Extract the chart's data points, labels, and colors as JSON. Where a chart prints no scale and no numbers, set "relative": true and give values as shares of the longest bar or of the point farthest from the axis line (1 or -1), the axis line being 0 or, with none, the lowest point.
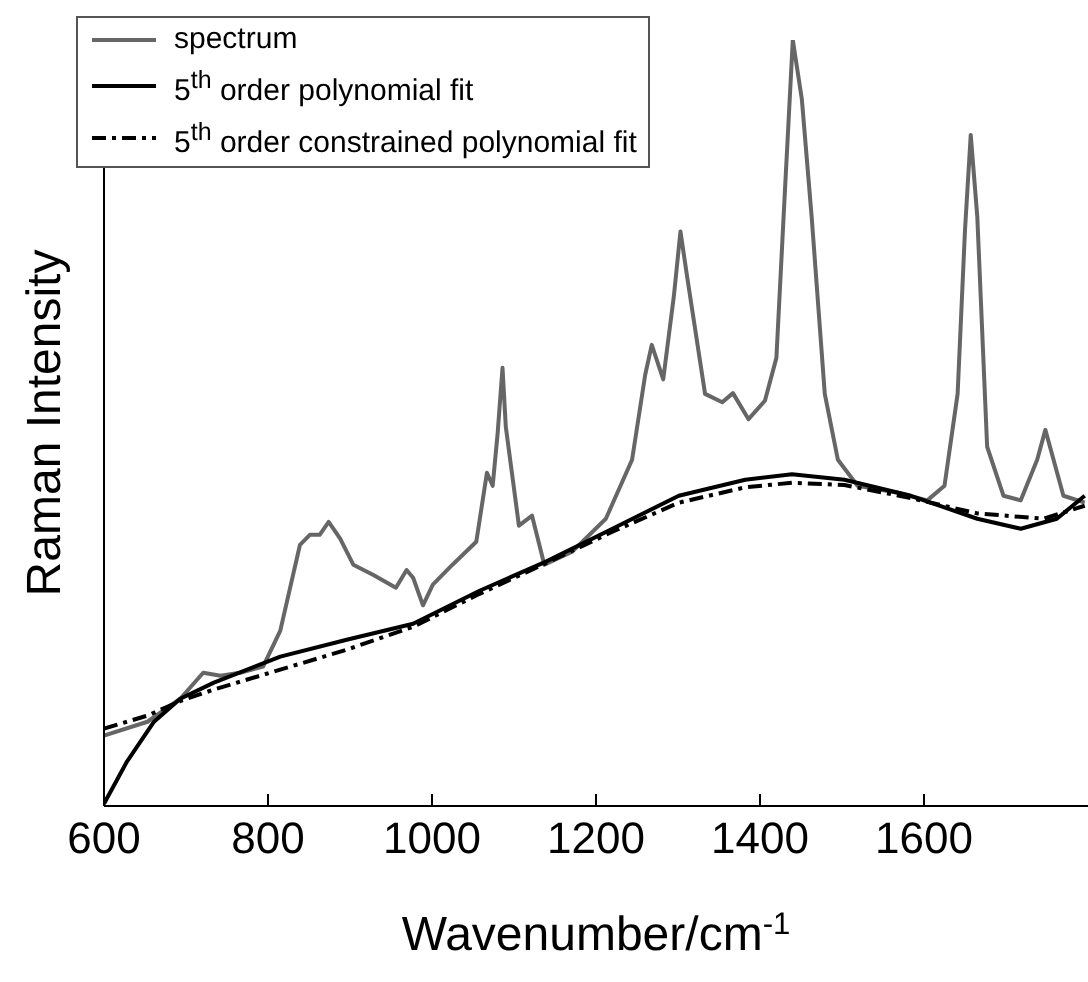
{
  "chart_data": {
    "type": "line",
    "xlabel": "Wavenumber/cm$^{-1}$",
    "ylabel": "Raman Intensity",
    "relative": true,
    "xlim": [
      600,
      1800
    ],
    "xticks": [
      600,
      800,
      1000,
      1200,
      1400,
      1600
    ],
    "legend": "top left",
    "grid": false,
    "marker": "none",
    "series": [
      {
        "name": "spectrum",
        "color": "#666666",
        "line_style": "solid",
        "x": [
          600,
          653,
          693,
          721,
          742,
          766,
          794,
          815,
          839,
          851,
          863,
          874,
          888,
          904,
          928,
          956,
          969,
          977,
          989,
          1001,
          1025,
          1054,
          1067,
          1074,
          1080,
          1086,
          1090,
          1106,
          1122,
          1137,
          1171,
          1212,
          1244,
          1260,
          1268,
          1282,
          1295,
          1303,
          1311,
          1333,
          1354,
          1367,
          1386,
          1406,
          1420,
          1430,
          1440,
          1451,
          1463,
          1479,
          1495,
          1519,
          1568,
          1604,
          1625,
          1641,
          1650,
          1657,
          1665,
          1677,
          1697,
          1718,
          1738,
          1748,
          1758,
          1770,
          1796
        ],
        "values": [
          0.092,
          0.11,
          0.14,
          0.174,
          0.17,
          0.174,
          0.182,
          0.229,
          0.341,
          0.354,
          0.354,
          0.371,
          0.349,
          0.315,
          0.302,
          0.285,
          0.308,
          0.298,
          0.262,
          0.289,
          0.315,
          0.345,
          0.435,
          0.418,
          0.486,
          0.572,
          0.495,
          0.366,
          0.379,
          0.315,
          0.332,
          0.375,
          0.452,
          0.563,
          0.602,
          0.557,
          0.666,
          0.75,
          0.692,
          0.538,
          0.527,
          0.539,
          0.505,
          0.529,
          0.585,
          0.795,
          1.0,
          0.923,
          0.769,
          0.538,
          0.452,
          0.418,
          0.409,
          0.399,
          0.418,
          0.538,
          0.752,
          0.876,
          0.769,
          0.469,
          0.405,
          0.399,
          0.452,
          0.491,
          0.452,
          0.405,
          0.396
        ]
      },
      {
        "name": "5$^{th}$ order polynomial fit",
        "color": "#000000",
        "line_style": "solid",
        "x": [
          600,
          628,
          661,
          693,
          734,
          815,
          896,
          977,
          1058,
          1139,
          1220,
          1301,
          1382,
          1439,
          1503,
          1584,
          1665,
          1718,
          1762,
          1796
        ],
        "values": [
          0.003,
          0.058,
          0.11,
          0.14,
          0.161,
          0.195,
          0.217,
          0.238,
          0.281,
          0.319,
          0.362,
          0.405,
          0.426,
          0.433,
          0.426,
          0.405,
          0.375,
          0.362,
          0.375,
          0.405
        ]
      },
      {
        "name": "5$^{th}$ order constrained polynomial fit",
        "color": "#000000",
        "line_style": "dashed",
        "x": [
          600,
          653,
          693,
          734,
          815,
          896,
          977,
          1058,
          1139,
          1220,
          1301,
          1382,
          1439,
          1503,
          1584,
          1665,
          1746,
          1796
        ],
        "values": [
          0.101,
          0.118,
          0.137,
          0.152,
          0.178,
          0.204,
          0.234,
          0.277,
          0.317,
          0.358,
          0.396,
          0.416,
          0.422,
          0.419,
          0.402,
          0.382,
          0.375,
          0.392
        ]
      }
    ]
  }
}
